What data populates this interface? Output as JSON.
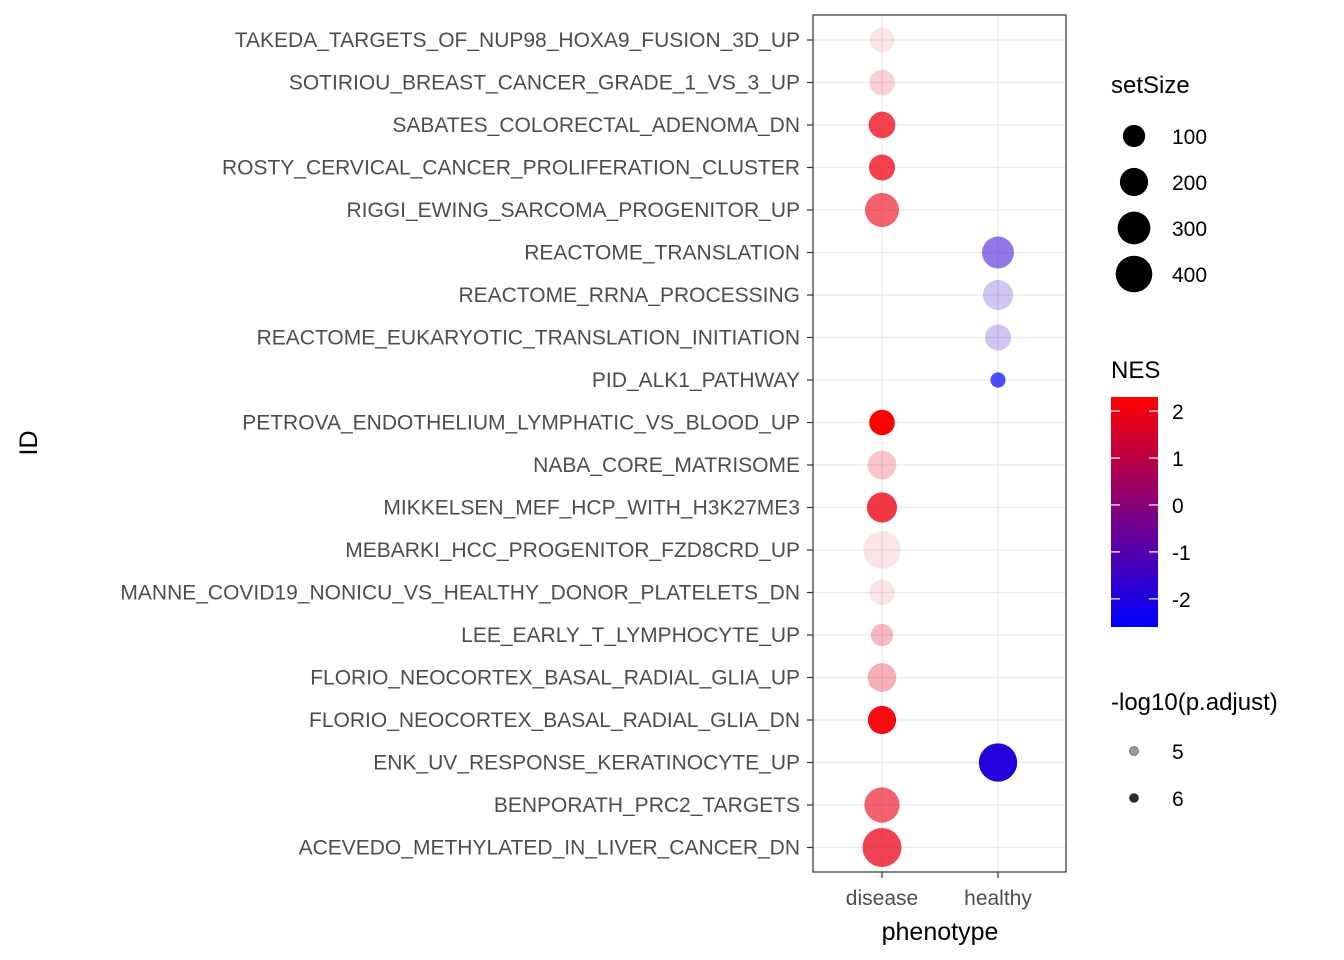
{
  "chart_data": {
    "type": "scatter",
    "xlabel": "phenotype",
    "ylabel": "ID",
    "x_categories": [
      "disease",
      "healthy"
    ],
    "y_categories": [
      "ACEVEDO_METHYLATED_IN_LIVER_CANCER_DN",
      "BENPORATH_PRC2_TARGETS",
      "ENK_UV_RESPONSE_KERATINOCYTE_UP",
      "FLORIO_NEOCORTEX_BASAL_RADIAL_GLIA_DN",
      "FLORIO_NEOCORTEX_BASAL_RADIAL_GLIA_UP",
      "LEE_EARLY_T_LYMPHOCYTE_UP",
      "MANNE_COVID19_NONICU_VS_HEALTHY_DONOR_PLATELETS_DN",
      "MEBARKI_HCC_PROGENITOR_FZD8CRD_UP",
      "MIKKELSEN_MEF_HCP_WITH_H3K27ME3",
      "NABA_CORE_MATRISOME",
      "PETROVA_ENDOTHELIUM_LYMPHATIC_VS_BLOOD_UP",
      "PID_ALK1_PATHWAY",
      "REACTOME_EUKARYOTIC_TRANSLATION_INITIATION",
      "REACTOME_RRNA_PROCESSING",
      "REACTOME_TRANSLATION",
      "RIGGI_EWING_SARCOMA_PROGENITOR_UP",
      "ROSTY_CERVICAL_CANCER_PROLIFERATION_CLUSTER",
      "SABATES_COLORECTAL_ADENOMA_DN",
      "SOTIRIOU_BREAST_CANCER_GRADE_1_VS_3_UP",
      "TAKEDA_TARGETS_OF_NUP98_HOXA9_FUSION_3D_UP"
    ],
    "points": [
      {
        "id": "ACEVEDO_METHYLATED_IN_LIVER_CANCER_DN",
        "phenotype": "disease",
        "setSize": 470,
        "NES": 1.9,
        "neglog10_padj": 5.8
      },
      {
        "id": "BENPORATH_PRC2_TARGETS",
        "phenotype": "disease",
        "setSize": 360,
        "NES": 1.9,
        "neglog10_padj": 5.5
      },
      {
        "id": "ENK_UV_RESPONSE_KERATINOCYTE_UP",
        "phenotype": "healthy",
        "setSize": 450,
        "NES": -1.9,
        "neglog10_padj": 6.4
      },
      {
        "id": "FLORIO_NEOCORTEX_BASAL_RADIAL_GLIA_DN",
        "phenotype": "disease",
        "setSize": 200,
        "NES": 2.2,
        "neglog10_padj": 6.3
      },
      {
        "id": "FLORIO_NEOCORTEX_BASAL_RADIAL_GLIA_UP",
        "phenotype": "disease",
        "setSize": 210,
        "NES": 1.8,
        "neglog10_padj": 4.8
      },
      {
        "id": "LEE_EARLY_T_LYMPHOCYTE_UP",
        "phenotype": "disease",
        "setSize": 100,
        "NES": 1.8,
        "neglog10_padj": 4.7
      },
      {
        "id": "MANNE_COVID19_NONICU_VS_HEALTHY_DONOR_PLATELETS_DN",
        "phenotype": "disease",
        "setSize": 150,
        "NES": 1.7,
        "neglog10_padj": 4.3
      },
      {
        "id": "MEBARKI_HCC_PROGENITOR_FZD8CRD_UP",
        "phenotype": "disease",
        "setSize": 430,
        "NES": 1.7,
        "neglog10_padj": 4.3
      },
      {
        "id": "MIKKELSEN_MEF_HCP_WITH_H3K27ME3",
        "phenotype": "disease",
        "setSize": 240,
        "NES": 2.0,
        "neglog10_padj": 5.9
      },
      {
        "id": "NABA_CORE_MATRISOME",
        "phenotype": "disease",
        "setSize": 210,
        "NES": 1.8,
        "neglog10_padj": 4.6
      },
      {
        "id": "PETROVA_ENDOTHELIUM_LYMPHATIC_VS_BLOOD_UP",
        "phenotype": "disease",
        "setSize": 150,
        "NES": 2.3,
        "neglog10_padj": 6.4
      },
      {
        "id": "PID_ALK1_PATHWAY",
        "phenotype": "healthy",
        "setSize": 25,
        "NES": -2.6,
        "neglog10_padj": 5.7
      },
      {
        "id": "REACTOME_EUKARYOTIC_TRANSLATION_INITIATION",
        "phenotype": "healthy",
        "setSize": 160,
        "NES": -1.6,
        "neglog10_padj": 4.6
      },
      {
        "id": "REACTOME_RRNA_PROCESSING",
        "phenotype": "healthy",
        "setSize": 240,
        "NES": -1.6,
        "neglog10_padj": 4.6
      },
      {
        "id": "REACTOME_TRANSLATION",
        "phenotype": "healthy",
        "setSize": 280,
        "NES": -1.7,
        "neglog10_padj": 5.3
      },
      {
        "id": "RIGGI_EWING_SARCOMA_PROGENITOR_UP",
        "phenotype": "disease",
        "setSize": 330,
        "NES": 1.9,
        "neglog10_padj": 5.5
      },
      {
        "id": "ROSTY_CERVICAL_CANCER_PROLIFERATION_CLUSTER",
        "phenotype": "disease",
        "setSize": 160,
        "NES": 2.0,
        "neglog10_padj": 5.8
      },
      {
        "id": "SABATES_COLORECTAL_ADENOMA_DN",
        "phenotype": "disease",
        "setSize": 170,
        "NES": 2.0,
        "neglog10_padj": 5.8
      },
      {
        "id": "SOTIRIOU_BREAST_CANCER_GRADE_1_VS_3_UP",
        "phenotype": "disease",
        "setSize": 150,
        "NES": 1.7,
        "neglog10_padj": 4.5
      },
      {
        "id": "TAKEDA_TARGETS_OF_NUP98_HOXA9_FUSION_3D_UP",
        "phenotype": "disease",
        "setSize": 140,
        "NES": 1.7,
        "neglog10_padj": 4.3
      }
    ],
    "grid": true,
    "legends": {
      "size": {
        "title": "setSize",
        "breaks": [
          100,
          200,
          300,
          400
        ],
        "labels": [
          "100",
          "200",
          "300",
          "400"
        ]
      },
      "color": {
        "title": "NES",
        "range": [
          -2.6,
          2.3
        ],
        "low": "#0000FF",
        "high": "#FF0000",
        "breaks": [
          2,
          1,
          0,
          -1,
          -2
        ],
        "labels": [
          "2",
          "1",
          "0",
          "-1",
          "-2"
        ]
      },
      "alpha": {
        "title": "-log10(p.adjust)",
        "range": [
          4.3,
          6.4
        ],
        "breaks": [
          5,
          6
        ],
        "labels": [
          "5",
          "6"
        ]
      }
    },
    "legend_position": "right"
  }
}
